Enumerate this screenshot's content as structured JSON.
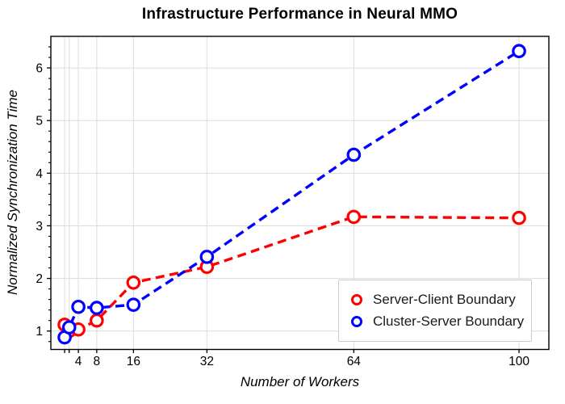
{
  "title": "Infrastructure Performance in Neural MMO",
  "colors": {
    "series_red": "#ff0000",
    "series_blue": "#0000ff",
    "grid": "#dcdcdc",
    "axis": "#000000",
    "text": "#000000",
    "legend_border": "#cccccc",
    "background": "#ffffff"
  },
  "chart_data": {
    "type": "line",
    "title": "Infrastructure Performance in Neural MMO",
    "xlabel": "Number of Workers",
    "ylabel": "Normalized Synchronization Time",
    "x": [
      1,
      2,
      4,
      8,
      16,
      32,
      64,
      100
    ],
    "series": [
      {
        "name": "Server-Client Boundary",
        "color": "#ff0000",
        "values": [
          1.12,
          1.0,
          1.03,
          1.2,
          1.92,
          2.22,
          3.17,
          3.15
        ]
      },
      {
        "name": "Cluster-Server Boundary",
        "color": "#0000ff",
        "values": [
          0.88,
          1.07,
          1.46,
          1.44,
          1.5,
          2.41,
          4.35,
          6.32
        ]
      }
    ],
    "x_major_ticks": [
      4,
      8,
      16,
      32,
      64,
      100
    ],
    "x_small_ticks": [
      1,
      2
    ],
    "y_major_ticks": [
      1,
      2,
      3,
      4,
      5,
      6
    ],
    "y_minor_tick_step": 0.2,
    "y_minor_tick_range": [
      0.8,
      6.4
    ],
    "xlim": [
      -2,
      106.5
    ],
    "ylim": [
      0.65,
      6.6
    ],
    "x_scale": "linear",
    "grid": true,
    "line_style": "dashed",
    "marker": "open-circle",
    "legend_position": "lower right"
  },
  "legend": {
    "items": [
      {
        "label": "Server-Client Boundary",
        "color": "#ff0000"
      },
      {
        "label": "Cluster-Server Boundary",
        "color": "#0000ff"
      }
    ]
  }
}
